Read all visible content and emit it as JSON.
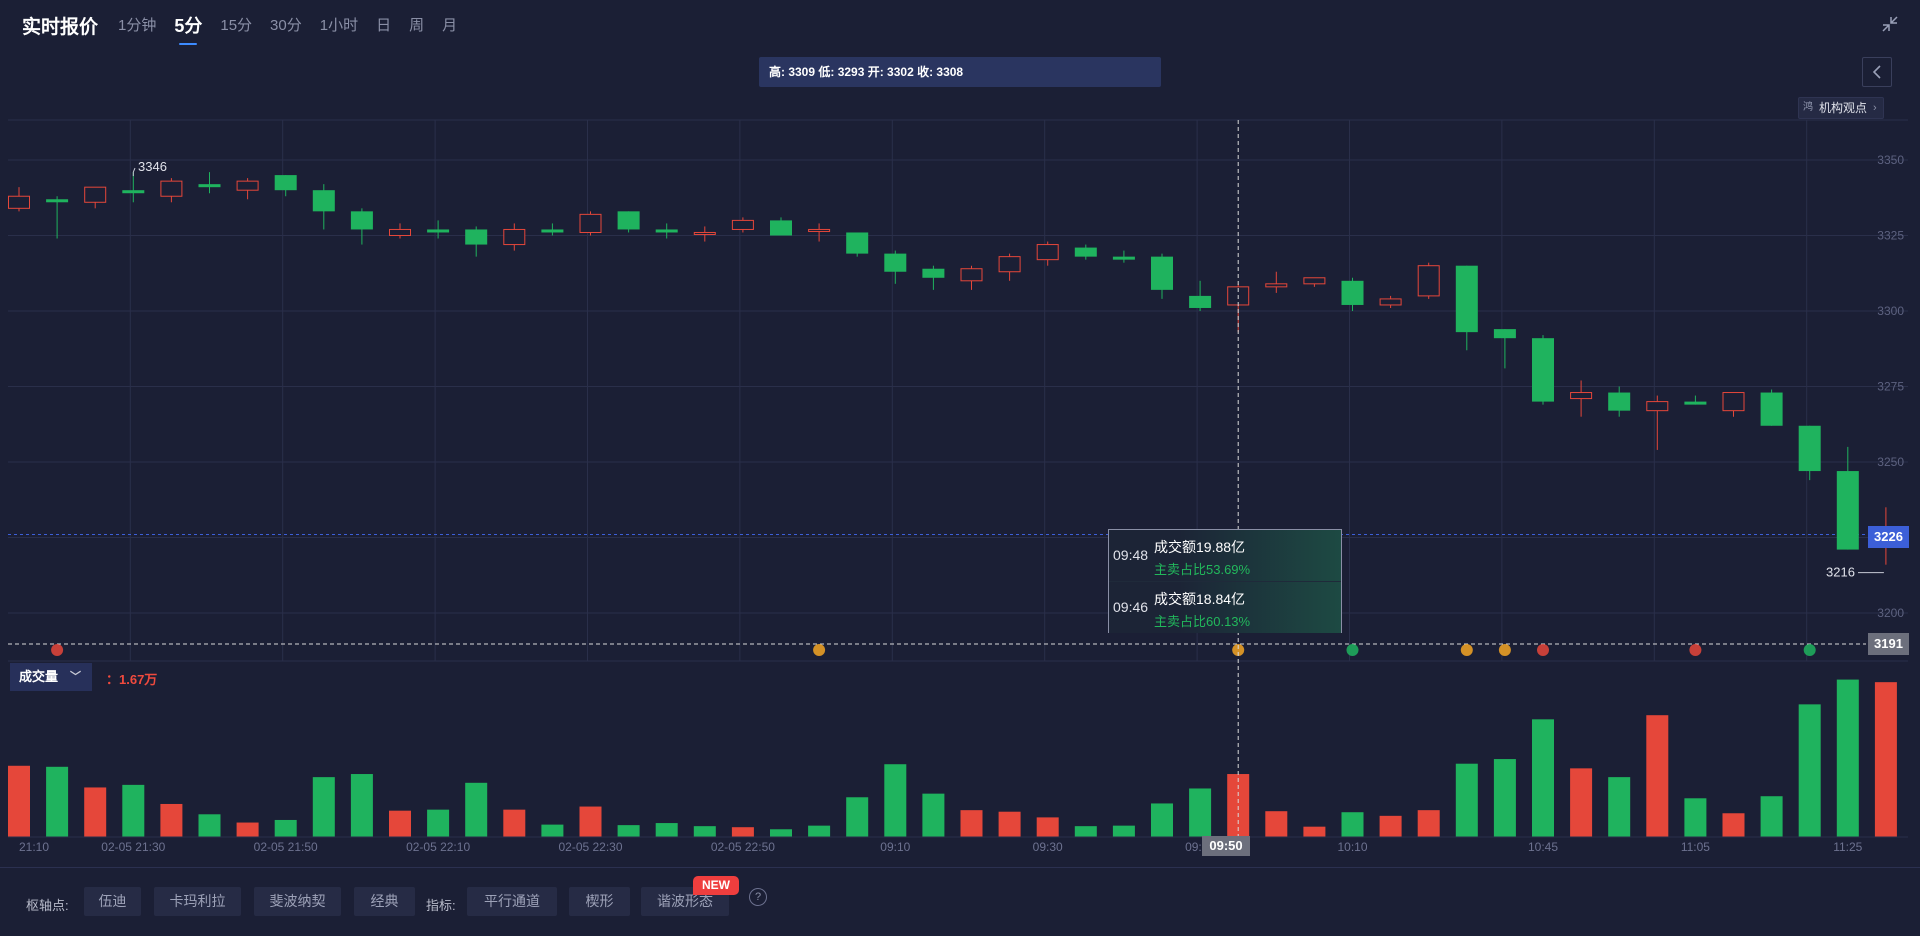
{
  "header": {
    "title": "实时报价",
    "tabs": [
      {
        "label": "1分钟",
        "active": false
      },
      {
        "label": "5分",
        "active": true
      },
      {
        "label": "15分",
        "active": false
      },
      {
        "label": "30分",
        "active": false
      },
      {
        "label": "1小时",
        "active": false
      },
      {
        "label": "日",
        "active": false
      },
      {
        "label": "周",
        "active": false
      },
      {
        "label": "月",
        "active": false
      }
    ]
  },
  "ohlc_text": "高: 3309 低: 3293 开: 3302 收: 3308",
  "institution_button": {
    "icon": "ai-icon",
    "icon_text": "鸿",
    "label": "机构观点"
  },
  "volume_panel": {
    "selector_label": "成交量",
    "value_text": "：1.67万"
  },
  "tooltip": {
    "rows": [
      {
        "time": "09:48",
        "amount": "成交额19.88亿",
        "ratio": "主卖占比53.69%"
      },
      {
        "time": "09:46",
        "amount": "成交额18.84亿",
        "ratio": "主卖占比60.13%"
      }
    ]
  },
  "price_tags": {
    "current": "3226",
    "crosshair_low": "3191"
  },
  "time_tag": "09:50",
  "high_label": "3346",
  "low_label": "3216",
  "bottom_bar": {
    "pivot_label": "枢轴点:",
    "pivot_buttons": [
      "伍迪",
      "卡玛利拉",
      "斐波纳契",
      "经典"
    ],
    "indicator_label": "指标:",
    "indicator_buttons": [
      "平行通道",
      "楔形",
      "谐波形态"
    ],
    "new_badge": "NEW",
    "help_icon": "?"
  },
  "colors": {
    "up": "#e5473a",
    "down": "#1fb35e",
    "accent": "#3d8bff",
    "background": "#1b1f35"
  },
  "chart_data": [
    {
      "type": "candlestick",
      "title": "",
      "ylim": [
        3191,
        3360
      ],
      "yticks": [
        3200,
        3225,
        3250,
        3275,
        3300,
        3325,
        3350
      ],
      "x_labels": [
        "21:10",
        "02-05 21:30",
        "02-05 21:50",
        "02-05 22:10",
        "02-05 22:30",
        "02-05 22:50",
        "09:10",
        "09:30",
        "09:50",
        "10:10",
        "10:45",
        "11:05",
        "11:25"
      ],
      "grid": true,
      "candles": [
        {
          "o": 3334,
          "h": 3341,
          "l": 3333,
          "c": 3338
        },
        {
          "o": 3337,
          "h": 3338,
          "l": 3324,
          "c": 3336
        },
        {
          "o": 3336,
          "h": 3341,
          "l": 3334,
          "c": 3341
        },
        {
          "o": 3340,
          "h": 3346,
          "l": 3336,
          "c": 3339
        },
        {
          "o": 3338,
          "h": 3344,
          "l": 3336,
          "c": 3343
        },
        {
          "o": 3342,
          "h": 3346,
          "l": 3339,
          "c": 3341
        },
        {
          "o": 3340,
          "h": 3344,
          "l": 3337,
          "c": 3343
        },
        {
          "o": 3345,
          "h": 3345,
          "l": 3338,
          "c": 3340
        },
        {
          "o": 3340,
          "h": 3342,
          "l": 3327,
          "c": 3333
        },
        {
          "o": 3333,
          "h": 3334,
          "l": 3322,
          "c": 3327
        },
        {
          "o": 3325,
          "h": 3329,
          "l": 3324,
          "c": 3327
        },
        {
          "o": 3327,
          "h": 3330,
          "l": 3324,
          "c": 3326
        },
        {
          "o": 3327,
          "h": 3328,
          "l": 3318,
          "c": 3322
        },
        {
          "o": 3322,
          "h": 3329,
          "l": 3320,
          "c": 3327
        },
        {
          "o": 3327,
          "h": 3329,
          "l": 3325,
          "c": 3326
        },
        {
          "o": 3326,
          "h": 3333,
          "l": 3325,
          "c": 3332
        },
        {
          "o": 3333,
          "h": 3333,
          "l": 3326,
          "c": 3327
        },
        {
          "o": 3327,
          "h": 3329,
          "l": 3324,
          "c": 3326
        },
        {
          "o": 3326,
          "h": 3328,
          "l": 3323,
          "c": 3326
        },
        {
          "o": 3327,
          "h": 3331,
          "l": 3326,
          "c": 3330
        },
        {
          "o": 3330,
          "h": 3331,
          "l": 3325,
          "c": 3325
        },
        {
          "o": 3327,
          "h": 3329,
          "l": 3323,
          "c": 3327
        },
        {
          "o": 3326,
          "h": 3325,
          "l": 3318,
          "c": 3319
        },
        {
          "o": 3319,
          "h": 3320,
          "l": 3309,
          "c": 3313
        },
        {
          "o": 3314,
          "h": 3315,
          "l": 3307,
          "c": 3311
        },
        {
          "o": 3310,
          "h": 3315,
          "l": 3307,
          "c": 3314
        },
        {
          "o": 3313,
          "h": 3319,
          "l": 3310,
          "c": 3318
        },
        {
          "o": 3317,
          "h": 3323,
          "l": 3315,
          "c": 3322
        },
        {
          "o": 3321,
          "h": 3322,
          "l": 3317,
          "c": 3318
        },
        {
          "o": 3318,
          "h": 3320,
          "l": 3316,
          "c": 3317
        },
        {
          "o": 3318,
          "h": 3319,
          "l": 3304,
          "c": 3307
        },
        {
          "o": 3305,
          "h": 3310,
          "l": 3300,
          "c": 3301
        },
        {
          "o": 3302,
          "h": 3309,
          "l": 3293,
          "c": 3308
        },
        {
          "o": 3308,
          "h": 3313,
          "l": 3306,
          "c": 3309
        },
        {
          "o": 3309,
          "h": 3311,
          "l": 3308,
          "c": 3311
        },
        {
          "o": 3310,
          "h": 3311,
          "l": 3300,
          "c": 3302
        },
        {
          "o": 3302,
          "h": 3305,
          "l": 3301,
          "c": 3304
        },
        {
          "o": 3305,
          "h": 3316,
          "l": 3304,
          "c": 3315
        },
        {
          "o": 3315,
          "h": 3315,
          "l": 3287,
          "c": 3293
        },
        {
          "o": 3294,
          "h": 3294,
          "l": 3281,
          "c": 3291
        },
        {
          "o": 3291,
          "h": 3292,
          "l": 3269,
          "c": 3270
        },
        {
          "o": 3271,
          "h": 3277,
          "l": 3265,
          "c": 3273
        },
        {
          "o": 3273,
          "h": 3275,
          "l": 3265,
          "c": 3267
        },
        {
          "o": 3267,
          "h": 3272,
          "l": 3254,
          "c": 3270
        },
        {
          "o": 3270,
          "h": 3272,
          "l": 3269,
          "c": 3269
        },
        {
          "o": 3267,
          "h": 3273,
          "l": 3265,
          "c": 3273
        },
        {
          "o": 3273,
          "h": 3274,
          "l": 3262,
          "c": 3262
        },
        {
          "o": 3262,
          "h": 3262,
          "l": 3244,
          "c": 3247
        },
        {
          "o": 3247,
          "h": 3255,
          "l": 3221,
          "c": 3221
        },
        {
          "o": 3222,
          "h": 3235,
          "l": 3216,
          "c": 3226
        }
      ]
    },
    {
      "type": "bar",
      "title": "成交量",
      "values": [
        1.38,
        1.36,
        0.96,
        1.01,
        0.64,
        0.44,
        0.28,
        0.33,
        1.16,
        1.22,
        0.51,
        0.53,
        1.05,
        0.53,
        0.24,
        0.59,
        0.23,
        0.27,
        0.21,
        0.19,
        0.15,
        0.22,
        0.77,
        1.41,
        0.84,
        0.52,
        0.49,
        0.38,
        0.21,
        0.22,
        0.65,
        0.94,
        1.22,
        0.5,
        0.2,
        0.48,
        0.41,
        0.52,
        1.42,
        1.51,
        2.28,
        1.33,
        1.16,
        2.36,
        0.75,
        0.46,
        0.79,
        2.57,
        3.05,
        3.0
      ],
      "up": [
        true,
        false,
        true,
        false,
        true,
        false,
        true,
        false,
        false,
        false,
        true,
        false,
        false,
        true,
        false,
        true,
        false,
        false,
        false,
        true,
        false,
        false,
        false,
        false,
        false,
        true,
        true,
        true,
        false,
        false,
        false,
        false,
        true,
        true,
        true,
        false,
        true,
        true,
        false,
        false,
        false,
        true,
        false,
        true,
        false,
        true,
        false,
        false,
        false,
        true
      ]
    }
  ]
}
